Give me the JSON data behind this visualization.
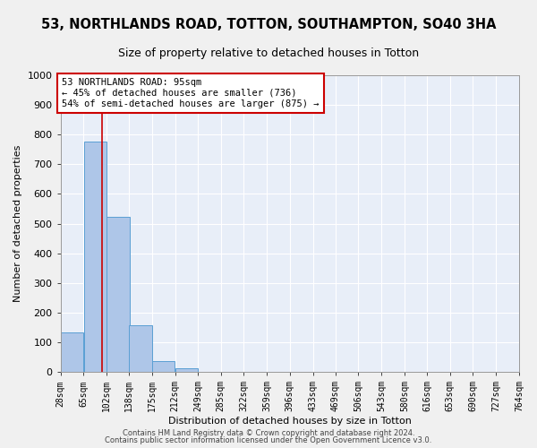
{
  "title1": "53, NORTHLANDS ROAD, TOTTON, SOUTHAMPTON, SO40 3HA",
  "title2": "Size of property relative to detached houses in Totton",
  "xlabel": "Distribution of detached houses by size in Totton",
  "ylabel": "Number of detached properties",
  "bar_edges": [
    28,
    65,
    102,
    138,
    175,
    212,
    249,
    285,
    322,
    359,
    396,
    433,
    469,
    506,
    543,
    580,
    616,
    653,
    690,
    727,
    764
  ],
  "bar_values": [
    132,
    778,
    523,
    158,
    37,
    13,
    0,
    0,
    0,
    0,
    0,
    0,
    0,
    0,
    0,
    0,
    0,
    0,
    0,
    0
  ],
  "bar_color": "#aec6e8",
  "bar_edge_color": "#5a9fd4",
  "vline_x": 95,
  "vline_color": "#cc0000",
  "annotation_text": "53 NORTHLANDS ROAD: 95sqm\n← 45% of detached houses are smaller (736)\n54% of semi-detached houses are larger (875) →",
  "annotation_box_color": "#ffffff",
  "annotation_box_edge": "#cc0000",
  "ylim": [
    0,
    1000
  ],
  "yticks": [
    0,
    100,
    200,
    300,
    400,
    500,
    600,
    700,
    800,
    900,
    1000
  ],
  "background_color": "#e8eef8",
  "grid_color": "#ffffff",
  "footer1": "Contains HM Land Registry data © Crown copyright and database right 2024.",
  "footer2": "Contains public sector information licensed under the Open Government Licence v3.0.",
  "title1_fontsize": 10.5,
  "title2_fontsize": 9,
  "axis_label_fontsize": 8,
  "tick_label_fontsize": 7,
  "footer_fontsize": 6,
  "annotation_fontsize": 7.5,
  "fig_bg_color": "#f0f0f0"
}
